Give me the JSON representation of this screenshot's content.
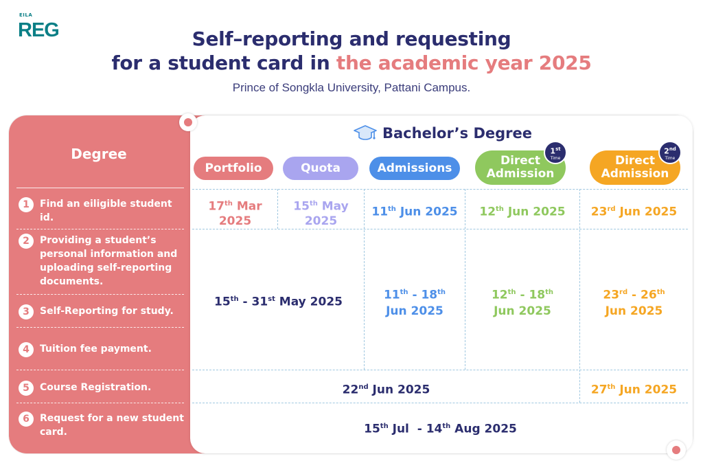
{
  "logo": {
    "small": "EILA",
    "main": "REG"
  },
  "title": {
    "line1": "Self–reporting and requesting",
    "line2_prefix": "for a student card in ",
    "line2_accent": "the academic year 2025",
    "subtitle": "Prince of Songkla University, Pattani Campus."
  },
  "colors": {
    "coral": "#e57c7e",
    "navy": "#2b2d6e",
    "purple": "#a9a5ef",
    "blue": "#4d8fe8",
    "green": "#8fc85e",
    "orange": "#f5a623"
  },
  "degree_header": "Degree",
  "program": {
    "icon": "graduation-cap-icon",
    "label": "Bachelor’s Degree"
  },
  "rounds": [
    {
      "label": "Portfolio"
    },
    {
      "label": "Quota"
    },
    {
      "label": "Admissions"
    },
    {
      "line1": "Direct",
      "line2": "Admission",
      "badge_ord": "1",
      "badge_sup": "st",
      "badge_sub": "Time"
    },
    {
      "line1": "Direct",
      "line2": "Admission",
      "badge_ord": "2",
      "badge_sup": "nd",
      "badge_sub": "Time"
    }
  ],
  "steps": [
    {
      "num": "1",
      "label": "Find an eiligible student id."
    },
    {
      "num": "2",
      "label": "Providing a student’s personal information and uploading self-reporting documents."
    },
    {
      "num": "3",
      "label": "Self-Reporting for study."
    },
    {
      "num": "4",
      "label": "Tuition fee payment."
    },
    {
      "num": "5",
      "label": "Course Registration."
    },
    {
      "num": "6",
      "label": "Request for a new student card."
    }
  ],
  "dates": {
    "step1": {
      "portfolio": {
        "d": "17",
        "s": "th",
        "l1": " Mar",
        "l2": "2025"
      },
      "quota": {
        "d": "15",
        "s": "th",
        "l1": " May",
        "l2": "2025"
      },
      "admissions": {
        "d": "11",
        "s": "th",
        "l1": " Jun 2025"
      },
      "direct1": {
        "d": "12",
        "s": "th",
        "l1": " Jun 2025"
      },
      "direct2": {
        "d": "23",
        "s": "rd",
        "l1": " Jun 2025"
      }
    },
    "step2_4": {
      "portfolio_quota": {
        "d1": "15",
        "s1": "th",
        "mid": " - ",
        "d2": "31",
        "s2": "st",
        "rest": " May 2025"
      },
      "admissions": {
        "d1": "11",
        "s1": "th",
        "mid": " - ",
        "d2": "18",
        "s2": "th",
        "l2": "Jun 2025"
      },
      "direct1": {
        "d1": "12",
        "s1": "th",
        "mid": " - ",
        "d2": "18",
        "s2": "th",
        "l2": "Jun 2025"
      },
      "direct2": {
        "d1": "23",
        "s1": "rd",
        "mid": " - ",
        "d2": "26",
        "s2": "th",
        "l2": "Jun 2025"
      }
    },
    "step5": {
      "main": {
        "d": "22",
        "s": "nd",
        "rest": " Jun 2025"
      },
      "direct2": {
        "d": "27",
        "s": "th",
        "rest": " Jun 2025"
      }
    },
    "step6": {
      "d1": "15",
      "s1": "th",
      "m1": " Jul  - ",
      "d2": "14",
      "s2": "th",
      "rest": " Aug 2025"
    }
  }
}
